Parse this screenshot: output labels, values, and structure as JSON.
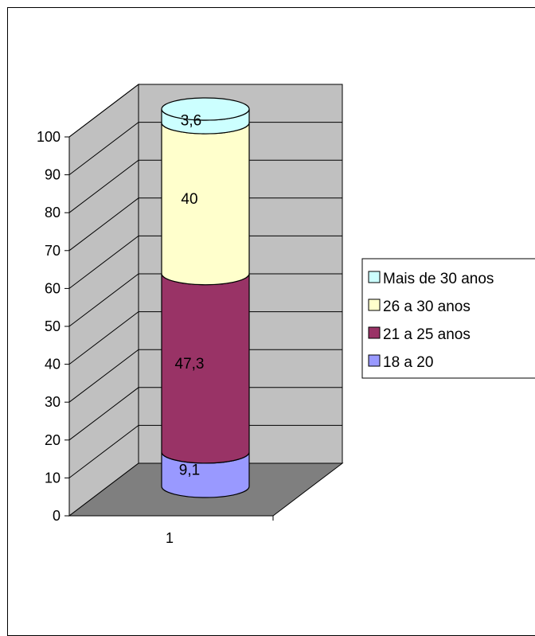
{
  "chart_data": {
    "type": "bar",
    "subtype": "stacked-cylinder-3d",
    "title": "",
    "xlabel": "",
    "ylabel": "",
    "categories": [
      "1"
    ],
    "ylim": [
      0,
      100
    ],
    "yticks": [
      "0",
      "10",
      "20",
      "30",
      "40",
      "50",
      "60",
      "70",
      "80",
      "90",
      "100"
    ],
    "grid": true,
    "legend_position": "right",
    "series": [
      {
        "name": "18 a 20",
        "values": [
          9.1
        ],
        "label": "9,1",
        "color": "#9999ff"
      },
      {
        "name": "21 a 25 anos",
        "values": [
          47.3
        ],
        "label": "47,3",
        "color": "#993366"
      },
      {
        "name": "26 a 30 anos",
        "values": [
          40
        ],
        "label": "40",
        "color": "#ffffcc"
      },
      {
        "name": "Mais de 30 anos",
        "values": [
          3.6
        ],
        "label": "3,6",
        "color": "#ccffff"
      }
    ],
    "legend_order": [
      "Mais de 30 anos",
      "26 a 30 anos",
      "21 a 25 anos",
      "18 a 20"
    ]
  }
}
